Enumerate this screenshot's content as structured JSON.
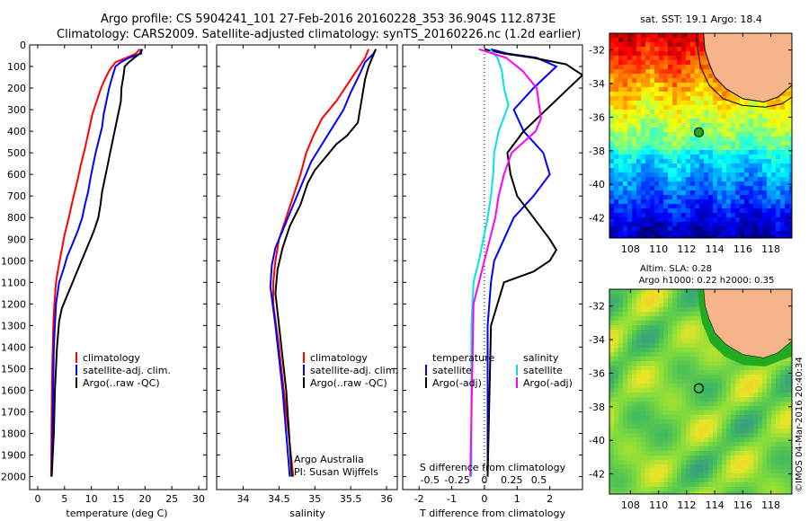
{
  "header": {
    "line1": "Argo profile: CS 5904241_101 27-Feb-2016 20160228_353 36.904S 112.873E",
    "line2": "Climatology: CARS2009. Satellite-adjusted climatology: synTS_20160226.nc (1.2d earlier)"
  },
  "colors": {
    "climatology": "#ff0000",
    "satellite": "#0000ff",
    "argo": "#000000",
    "salinity_satellite": "#00e5e5",
    "salinity_argo": "#ff00ff",
    "land": "#f6b48a",
    "map_sst_colormap": "jet",
    "map_sla_colormap": "green-yellow"
  },
  "chart_data": [
    {
      "type": "line",
      "title": "",
      "xlabel": "temperature (deg C)",
      "ylabel": "",
      "xlim": [
        -1.5,
        31.5
      ],
      "ylim": [
        2060,
        0
      ],
      "xticks": [
        "0",
        "5",
        "10",
        "15",
        "20",
        "25",
        "30"
      ],
      "yticks": [
        "0",
        "100",
        "200",
        "300",
        "400",
        "500",
        "600",
        "700",
        "800",
        "900",
        "1000",
        "1100",
        "1200",
        "1300",
        "1400",
        "1500",
        "1600",
        "1700",
        "1800",
        "1900",
        "2000"
      ],
      "legend": [
        "climatology",
        "satellite-adj. clim.",
        "Argo(..raw -QC)"
      ],
      "series": [
        {
          "name": "climatology",
          "color": "#ff0000",
          "x": [
            19.0,
            18.3,
            16.5,
            14.5,
            13.3,
            12.5,
            11.8,
            11.0,
            10.2,
            9.5,
            8.8,
            8.0,
            7.3,
            6.5,
            5.8,
            5.0,
            4.4,
            3.8,
            3.4,
            3.1,
            2.9,
            2.7,
            2.6,
            2.5
          ],
          "y": [
            20,
            40,
            60,
            80,
            120,
            160,
            200,
            260,
            320,
            400,
            480,
            560,
            640,
            720,
            800,
            880,
            960,
            1040,
            1100,
            1200,
            1300,
            1500,
            1700,
            2000
          ]
        },
        {
          "name": "satellite-adj. clim.",
          "color": "#0000ff",
          "x": [
            19.2,
            19.3,
            17.0,
            15.5,
            14.5,
            14.0,
            13.3,
            12.8,
            12.3,
            12.0,
            11.4,
            10.8,
            10.3,
            9.8,
            9.4,
            8.8,
            8.3,
            7.5,
            6.5,
            5.5,
            4.8,
            4.0,
            3.4,
            3.0,
            2.8,
            2.6
          ],
          "y": [
            20,
            40,
            60,
            80,
            100,
            140,
            200,
            260,
            320,
            380,
            440,
            500,
            560,
            620,
            680,
            740,
            800,
            860,
            920,
            980,
            1040,
            1100,
            1200,
            1400,
            1700,
            2000
          ]
        },
        {
          "name": "Argo(..raw -QC)",
          "color": "#000000",
          "x": [
            19.5,
            19.0,
            18.0,
            17.0,
            16.2,
            16.0,
            15.6,
            15.5,
            15.0,
            14.5,
            14.0,
            13.5,
            13.0,
            12.5,
            12.0,
            11.7,
            11.3,
            10.5,
            9.5,
            8.5,
            7.5,
            6.5,
            5.5,
            4.5,
            4.0,
            3.6,
            3.2,
            3.0,
            2.8,
            2.6
          ],
          "y": [
            20,
            40,
            60,
            80,
            100,
            140,
            200,
            260,
            320,
            380,
            440,
            500,
            560,
            620,
            680,
            740,
            800,
            860,
            920,
            980,
            1040,
            1100,
            1160,
            1220,
            1280,
            1400,
            1600,
            1800,
            1900,
            2000
          ]
        }
      ]
    },
    {
      "type": "line",
      "title": "",
      "xlabel": "salinity",
      "ylabel": "",
      "xlim": [
        33.63,
        36.15
      ],
      "ylim": [
        2060,
        0
      ],
      "xticks": [
        "34",
        "34.5",
        "35",
        "35.5",
        "36"
      ],
      "legend": [
        "climatology",
        "satellite-adj. clim.",
        "Argo(..raw -QC)"
      ],
      "annotations": [
        "Argo Australia",
        "PI: Susan Wijffels"
      ],
      "series": [
        {
          "name": "climatology",
          "color": "#ff0000",
          "x": [
            35.75,
            35.7,
            35.5,
            35.3,
            35.1,
            34.98,
            34.88,
            34.8,
            34.7,
            34.6,
            34.5,
            34.45,
            34.42,
            34.42,
            34.5,
            34.6,
            34.7
          ],
          "y": [
            20,
            60,
            160,
            260,
            340,
            420,
            500,
            600,
            700,
            800,
            900,
            1000,
            1100,
            1200,
            1400,
            1700,
            2000
          ]
        },
        {
          "name": "satellite-adj. clim.",
          "color": "#0000ff",
          "x": [
            35.85,
            35.82,
            35.7,
            35.62,
            35.5,
            35.4,
            35.25,
            35.1,
            34.95,
            34.85,
            34.75,
            34.65,
            34.55,
            34.45,
            34.4,
            34.38,
            34.45,
            34.55,
            34.65
          ],
          "y": [
            20,
            40,
            80,
            140,
            220,
            300,
            380,
            460,
            540,
            620,
            700,
            780,
            860,
            940,
            1020,
            1120,
            1300,
            1600,
            2000
          ]
        },
        {
          "name": "Argo(..raw -QC)",
          "color": "#000000",
          "x": [
            35.85,
            35.8,
            35.75,
            35.7,
            35.65,
            35.6,
            35.45,
            35.3,
            35.15,
            35.0,
            34.9,
            34.8,
            34.65,
            34.55,
            34.48,
            34.45,
            34.5,
            34.6,
            34.68
          ],
          "y": [
            20,
            60,
            100,
            160,
            260,
            360,
            420,
            460,
            520,
            580,
            640,
            740,
            840,
            940,
            1040,
            1150,
            1300,
            1600,
            2000
          ]
        }
      ]
    },
    {
      "type": "line",
      "title": "",
      "xlabel": "T difference from climatology",
      "xlabel_secondary": "S difference from climatology",
      "xlim_temperature": [
        -2.5,
        3.0
      ],
      "xlim_salinity": [
        -0.75,
        0.9
      ],
      "ylim": [
        2060,
        0
      ],
      "xticks": [
        "-2",
        "-1",
        "0",
        "1",
        "2"
      ],
      "xticks_secondary": [
        "-0.5",
        "-0.25",
        "0",
        "0.25",
        "0.5"
      ],
      "legend": {
        "temperature_header": "temperature",
        "salinity_header": "salinity",
        "items": [
          "satellite",
          "Argo(-adj)",
          "satellite",
          "Argo(-adj)"
        ]
      },
      "series": [
        {
          "name": "temperature satellite",
          "color": "#0000ff",
          "x": [
            0.2,
            0.7,
            1.6,
            2.2,
            1.5,
            0.9,
            1.2,
            1.8,
            2.0,
            1.5,
            0.9,
            0.6,
            0.3,
            0.2,
            0.1,
            0.1
          ],
          "y": [
            20,
            40,
            60,
            100,
            200,
            300,
            400,
            500,
            600,
            700,
            800,
            900,
            1000,
            1100,
            1300,
            2000
          ]
        },
        {
          "name": "temperature Argo(-adj)",
          "color": "#000000",
          "x": [
            0.0,
            0.6,
            1.5,
            2.5,
            3.0,
            1.2,
            0.7,
            0.8,
            1.0,
            1.5,
            2.0,
            2.2,
            2.0,
            1.5,
            0.6,
            0.2,
            0.1
          ],
          "y": [
            20,
            40,
            60,
            90,
            140,
            400,
            500,
            600,
            700,
            800,
            900,
            950,
            1000,
            1050,
            1100,
            1300,
            2000
          ]
        },
        {
          "name": "salinity satellite",
          "color": "#00e5e5",
          "x": [
            0.05,
            0.12,
            0.16,
            0.18,
            0.22,
            0.13,
            0.09,
            0.08,
            0.06,
            0.03,
            -0.05,
            -0.1,
            -0.12,
            -0.12
          ],
          "y": [
            20,
            60,
            120,
            200,
            280,
            400,
            500,
            600,
            700,
            800,
            1000,
            1100,
            1300,
            2000
          ]
        },
        {
          "name": "salinity Argo(-adj)",
          "color": "#ff00ff",
          "x": [
            -0.05,
            0.2,
            0.35,
            0.48,
            0.52,
            0.47,
            0.25,
            0.18,
            0.13,
            0.1,
            0.0,
            -0.1,
            -0.13
          ],
          "y": [
            20,
            60,
            120,
            200,
            340,
            400,
            500,
            600,
            700,
            800,
            1000,
            1200,
            2000
          ]
        }
      ]
    }
  ],
  "map_sst": {
    "title": "sat. SST: 19.1 Argo: 18.4",
    "yticks": [
      "-32",
      "-34",
      "-36",
      "-38",
      "-40",
      "-42"
    ],
    "xticks": [
      "108",
      "110",
      "112",
      "114",
      "116",
      "118"
    ],
    "lon_range": [
      106.5,
      119.5
    ],
    "lat_range": [
      -31,
      -43.2
    ],
    "profile_lon": 112.87,
    "profile_lat": -36.9
  },
  "map_sla": {
    "title": "Altim. SLA: 0.28",
    "subtitle": "Argo h1000: 0.22 h2000: 0.35",
    "yticks": [
      "-32",
      "-34",
      "-36",
      "-38",
      "-40",
      "-42"
    ],
    "xticks": [
      "108",
      "110",
      "112",
      "114",
      "116",
      "118"
    ],
    "lon_range": [
      106.5,
      119.5
    ],
    "lat_range": [
      -31,
      -43.2
    ],
    "profile_lon": 112.87,
    "profile_lat": -36.9
  },
  "footer": {
    "stamp": "©IMOS 04-Mar-2016 20:40:34"
  }
}
